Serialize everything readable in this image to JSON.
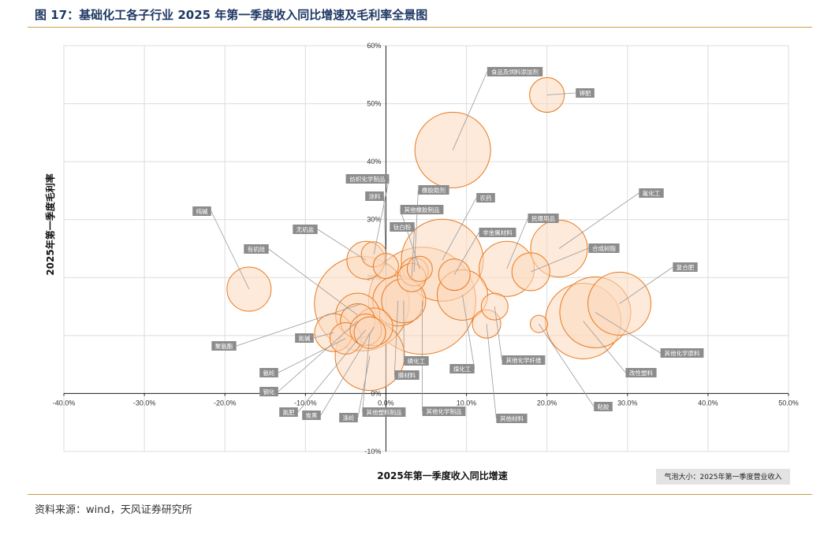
{
  "title": "图 17：基础化工各子行业 2025 年第一季度收入同比增速及毛利率全景图",
  "source": "资料来源：wind，天风证券研究所",
  "chart_data": {
    "type": "scatter",
    "subtype": "bubble",
    "xlabel": "2025年第一季度收入同比增速",
    "ylabel": "2025年第一季度毛利率",
    "xlim": [
      -40,
      50
    ],
    "ylim": [
      -10,
      60
    ],
    "x_ticks": [
      "-40.0%",
      "-30.0%",
      "-20.0%",
      "-10.0%",
      "0.0%",
      "10.0%",
      "20.0%",
      "30.0%",
      "40.0%",
      "50.0%"
    ],
    "y_ticks": [
      "-10%",
      "0%",
      "10%",
      "20%",
      "30%",
      "40%",
      "50%",
      "60%"
    ],
    "grid": true,
    "bubble_legend": "气泡大小：2025年第一季度营业收入",
    "colors": {
      "fill": "#fbd9bd",
      "stroke": "#e97a1e",
      "leader": "#9a9a9a",
      "label_bg": "#8c8c8c"
    },
    "points": [
      {
        "name": "食品及饲料添加剂",
        "x": 8.3,
        "y": 42,
        "size": 48
      },
      {
        "name": "钾肥",
        "x": 20,
        "y": 51.5,
        "size": 22
      },
      {
        "name": "纯碱",
        "x": -17,
        "y": 18,
        "size": 28
      },
      {
        "name": "有机硅",
        "x": -3.5,
        "y": 13.5,
        "size": 28
      },
      {
        "name": "无机盐",
        "x": -2.5,
        "y": 23,
        "size": 24
      },
      {
        "name": "纺织化学制品",
        "x": -1.5,
        "y": 24,
        "size": 16
      },
      {
        "name": "涂料",
        "x": 0,
        "y": 22,
        "size": 16
      },
      {
        "name": "橡胶助剂",
        "x": 3.5,
        "y": 21,
        "size": 18
      },
      {
        "name": "其他橡胶制品",
        "x": 4.2,
        "y": 21.5,
        "size": 16
      },
      {
        "name": "钛白粉",
        "x": 3.2,
        "y": 20,
        "size": 18
      },
      {
        "name": "农药",
        "x": 7,
        "y": 23,
        "size": 52
      },
      {
        "name": "非金属材料",
        "x": 8.5,
        "y": 20.5,
        "size": 20
      },
      {
        "name": "民爆用品",
        "x": 15,
        "y": 21.5,
        "size": 35
      },
      {
        "name": "氟化工",
        "x": 21.5,
        "y": 25,
        "size": 36
      },
      {
        "name": "合成树脂",
        "x": 18,
        "y": 21,
        "size": 24
      },
      {
        "name": "复合肥",
        "x": 29,
        "y": 15.5,
        "size": 40
      },
      {
        "name": "聚氨酯",
        "x": -3,
        "y": 15.5,
        "size": 60
      },
      {
        "name": "氮碱",
        "x": -6.5,
        "y": 10.5,
        "size": 24
      },
      {
        "name": "氨纶",
        "x": -5,
        "y": 9.5,
        "size": 20
      },
      {
        "name": "钢化",
        "x": -3.5,
        "y": 12.5,
        "size": 22
      },
      {
        "name": "氮肥",
        "x": -2.5,
        "y": 11,
        "size": 20
      },
      {
        "name": "炭黑",
        "x": -1.5,
        "y": 11.5,
        "size": 24
      },
      {
        "name": "涤纶",
        "x": -2,
        "y": 6.5,
        "size": 44
      },
      {
        "name": "其他塑料制品",
        "x": -2,
        "y": 10.5,
        "size": 20
      },
      {
        "name": "膜材料",
        "x": 1.5,
        "y": 16,
        "size": 32
      },
      {
        "name": "磷化工",
        "x": 2.2,
        "y": 16,
        "size": 28
      },
      {
        "name": "其他化学制品",
        "x": 4.5,
        "y": 16,
        "size": 68
      },
      {
        "name": "煤化工",
        "x": 9.5,
        "y": 17,
        "size": 32
      },
      {
        "name": "其他化学纤维",
        "x": 13.5,
        "y": 15,
        "size": 17
      },
      {
        "name": "其他材料",
        "x": 12.5,
        "y": 12,
        "size": 18
      },
      {
        "name": "粘胶",
        "x": 19,
        "y": 12,
        "size": 11
      },
      {
        "name": "改性塑料",
        "x": 24.5,
        "y": 12.5,
        "size": 48
      },
      {
        "name": "其他化学原料",
        "x": 26,
        "y": 14,
        "size": 45
      }
    ]
  }
}
